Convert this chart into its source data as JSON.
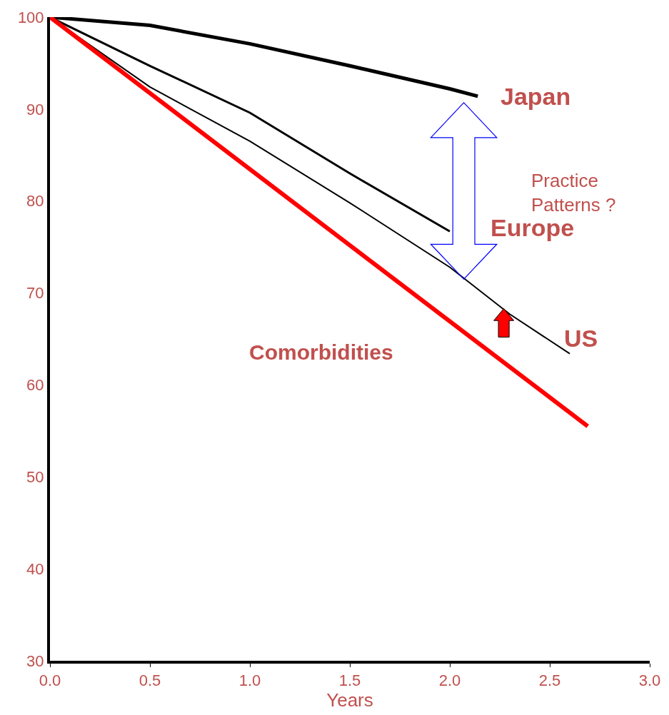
{
  "chart_data": {
    "type": "line",
    "xlabel": "Years",
    "xlim": [
      0,
      3
    ],
    "xticks": [
      {
        "value": 0,
        "label": "0.0"
      },
      {
        "value": 0.5,
        "label": "0.5"
      },
      {
        "value": 1,
        "label": "1.0"
      },
      {
        "value": 1.5,
        "label": "1.5"
      },
      {
        "value": 2,
        "label": "2.0"
      },
      {
        "value": 2.5,
        "label": "2.5"
      },
      {
        "value": 3,
        "label": "3.0"
      }
    ],
    "ylim": [
      30,
      100
    ],
    "yticks": [
      30,
      40,
      50,
      60,
      70,
      80,
      90,
      100
    ],
    "series": [
      {
        "name": "Japan",
        "color": "#000000",
        "x": [
          0,
          0.5,
          1.0,
          1.5,
          2.0,
          2.14
        ],
        "values": [
          100,
          99.1,
          97.1,
          94.7,
          92.2,
          91.4
        ]
      },
      {
        "name": "Europe",
        "color": "#000000",
        "x": [
          0,
          0.5,
          1.0,
          1.5,
          2.0
        ],
        "values": [
          100,
          94.7,
          89.6,
          83.0,
          76.7
        ]
      },
      {
        "name": "US",
        "color": "#000000",
        "x": [
          0,
          0.5,
          1.0,
          1.5,
          2.0,
          2.3,
          2.6
        ],
        "values": [
          100,
          92.4,
          86.5,
          79.8,
          72.8,
          67.7,
          63.4
        ]
      },
      {
        "color": "#ff0000",
        "x": [
          0,
          2.69
        ],
        "values": [
          100,
          55.5
        ]
      }
    ],
    "annotations": [
      "Practice Patterns ?",
      "Comorbidities"
    ],
    "marker": "none",
    "line_style": "solid"
  }
}
